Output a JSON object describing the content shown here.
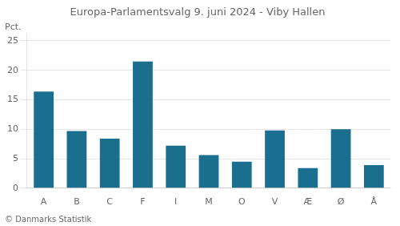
{
  "chart_data": {
    "type": "bar",
    "title": "Europa-Parlamentsvalg 9. juni 2024 - Viby Hallen",
    "ylabel": "Pct.",
    "footer": "© Danmarks Statistik",
    "categories": [
      "A",
      "B",
      "C",
      "F",
      "I",
      "M",
      "O",
      "V",
      "Æ",
      "Ø",
      "Å"
    ],
    "values": [
      16.4,
      9.7,
      8.4,
      21.5,
      7.2,
      5.6,
      4.5,
      9.8,
      3.4,
      10.0,
      3.9
    ],
    "color": "#1a6e8e",
    "ylim": [
      0,
      26
    ],
    "yticks": [
      0,
      5,
      10,
      15,
      20,
      25
    ],
    "grid": true
  }
}
